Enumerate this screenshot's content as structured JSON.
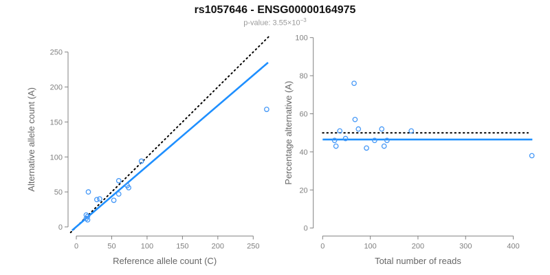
{
  "header": {
    "title": "rs1057646 - ENSG00000164975",
    "pvalue_label": "p-value:",
    "pvalue_mantissa": "3.55",
    "pvalue_times_base": "×10",
    "pvalue_exponent": "−3"
  },
  "colors": {
    "regression_blue": "#1E8FFF",
    "point_blue": "#4397F7",
    "dotted_black": "#000000",
    "axis_gray": "#808080",
    "tick_label_gray": "#808080",
    "axis_title_gray": "#666666",
    "title_black": "#111111",
    "subtitle_gray": "#9A9A9A"
  },
  "chart_data": [
    {
      "type": "scatter",
      "name": "allele-counts-scatter",
      "xlabel": "Reference allele count (C)",
      "ylabel": "Alternative allele count (A)",
      "xlim": [
        0,
        250
      ],
      "ylim": [
        0,
        250
      ],
      "xticks": [
        0,
        50,
        100,
        150,
        200,
        250
      ],
      "yticks": [
        0,
        50,
        100,
        150,
        200,
        250
      ],
      "grid": false,
      "points": [
        [
          17,
          50
        ],
        [
          29,
          39
        ],
        [
          33,
          40
        ],
        [
          53,
          38
        ],
        [
          60,
          66
        ],
        [
          72,
          59
        ],
        [
          74,
          56
        ],
        [
          60,
          47
        ],
        [
          92,
          94
        ],
        [
          14,
          17
        ],
        [
          16,
          15
        ],
        [
          14,
          12
        ],
        [
          16,
          10
        ],
        [
          269,
          168
        ]
      ],
      "lines": [
        {
          "name": "identity-line",
          "style": "dotted",
          "color": "#000000",
          "slope": 1,
          "intercept": 0,
          "from": [
            -8,
            -8
          ],
          "to": [
            272,
            272
          ]
        },
        {
          "name": "regression-line",
          "style": "solid",
          "color": "#1E8FFF",
          "slope": 0.87,
          "intercept": 0,
          "from": [
            -6,
            -5
          ],
          "to": [
            271,
            235
          ]
        }
      ]
    },
    {
      "type": "scatter",
      "name": "percentage-vs-reads-scatter",
      "xlabel": "Total number of reads",
      "ylabel": "Percentage alternative (A)",
      "xlim": [
        0,
        400
      ],
      "ylim": [
        0,
        100
      ],
      "xticks": [
        0,
        100,
        200,
        300,
        400
      ],
      "yticks": [
        0,
        20,
        40,
        60,
        80,
        100
      ],
      "grid": false,
      "points": [
        [
          66,
          76
        ],
        [
          68,
          57
        ],
        [
          75,
          52
        ],
        [
          36,
          51
        ],
        [
          124,
          52
        ],
        [
          186,
          51
        ],
        [
          25,
          46
        ],
        [
          48,
          47
        ],
        [
          28,
          43
        ],
        [
          92,
          42
        ],
        [
          109,
          46
        ],
        [
          135,
          46
        ],
        [
          129,
          43
        ],
        [
          439,
          38
        ]
      ],
      "lines": [
        {
          "name": "expected-50pct-line",
          "style": "dotted",
          "color": "#000000",
          "slope": 0,
          "intercept": 50,
          "from": [
            0,
            50
          ],
          "to": [
            431,
            50
          ]
        },
        {
          "name": "mean-percentage-line",
          "style": "solid",
          "color": "#1E8FFF",
          "slope": 0,
          "intercept": 46.5,
          "from": [
            0,
            46.5
          ],
          "to": [
            440,
            46.5
          ]
        }
      ]
    }
  ]
}
